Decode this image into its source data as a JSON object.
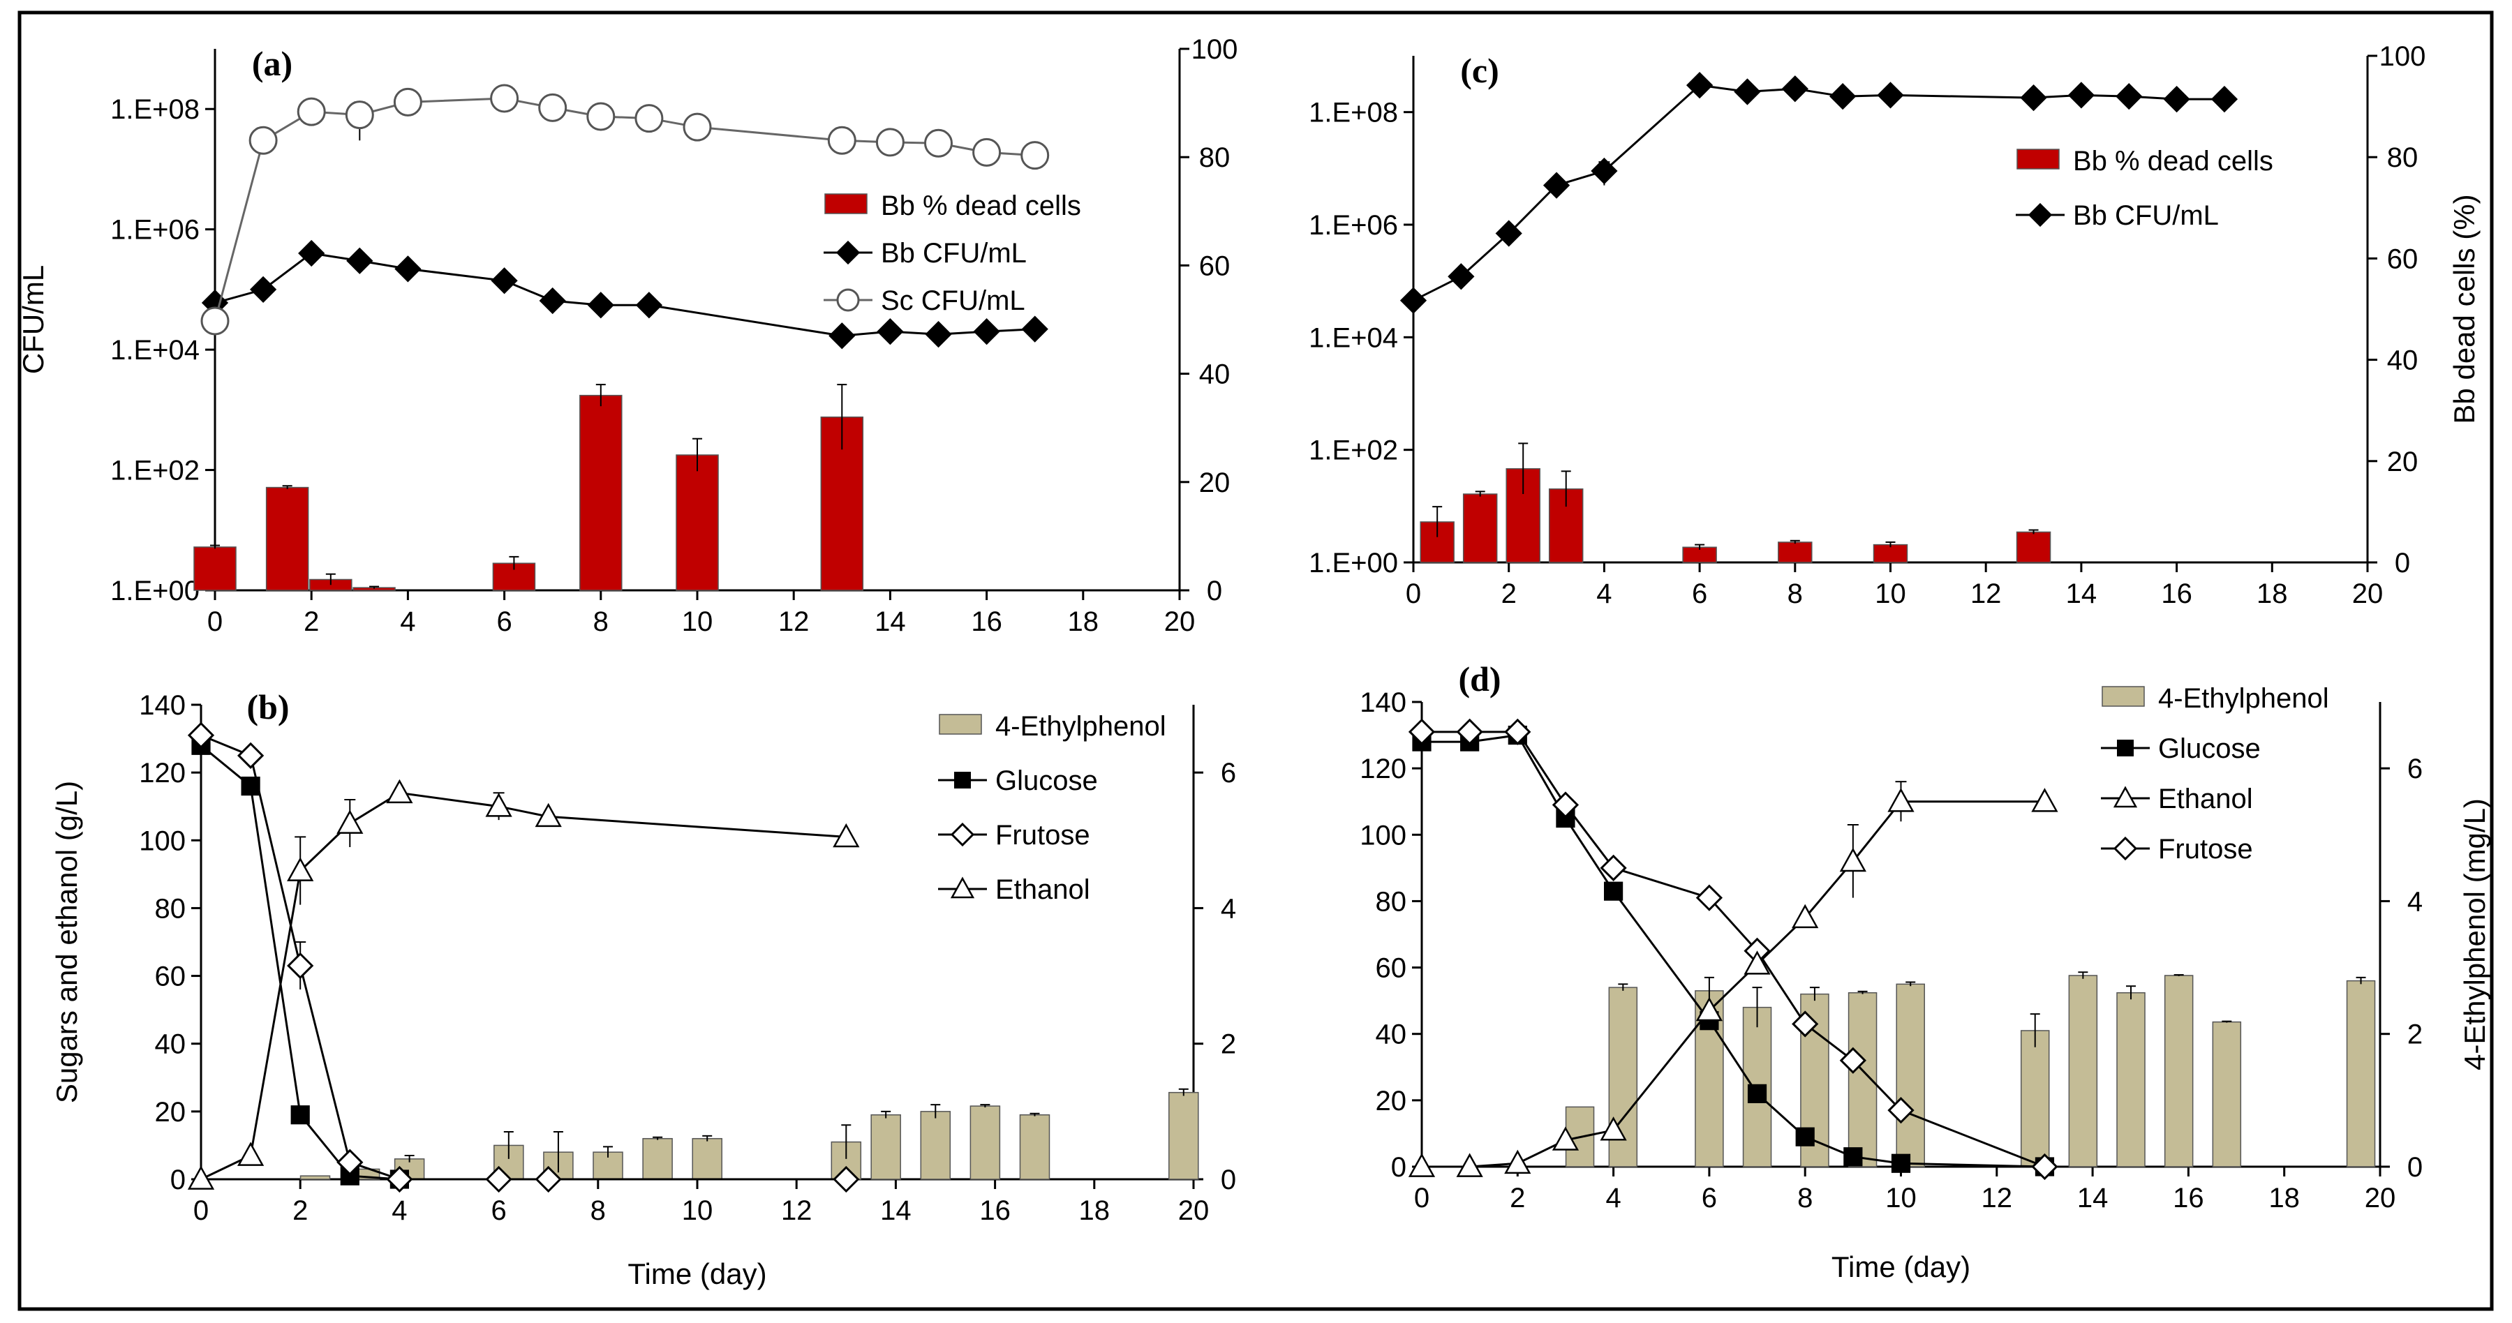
{
  "chart_data": [
    {
      "panel": "(a)",
      "type": "bar+line",
      "x_ticks": [
        "0",
        "2",
        "4",
        "6",
        "8",
        "10",
        "12",
        "14",
        "16",
        "18",
        "20"
      ],
      "xlim": [
        0,
        20
      ],
      "ylabel_left": "CFU/mL",
      "ylabel_right": "",
      "left_scale": "log",
      "ylim_left": [
        1,
        1000000000.0
      ],
      "y_ticks_left": [
        "1.E+00",
        "1.E+02",
        "1.E+04",
        "1.E+06",
        "1.E+08"
      ],
      "ylim_right": [
        0,
        100
      ],
      "y_ticks_right": [
        "0",
        "20",
        "40",
        "60",
        "80",
        "100"
      ],
      "bars": {
        "name": "Bb % dead cells",
        "color": "#c00000",
        "points": [
          {
            "x": 0,
            "y": 8,
            "err": 0.3
          },
          {
            "x": 1.5,
            "y": 19,
            "err": 0.3
          },
          {
            "x": 2.4,
            "y": 2,
            "err": 1
          },
          {
            "x": 3.3,
            "y": 0.5,
            "err": 0.2
          },
          {
            "x": 6.2,
            "y": 5,
            "err": 1.2
          },
          {
            "x": 8,
            "y": 36,
            "err": 2
          },
          {
            "x": 10,
            "y": 25,
            "err": 3
          },
          {
            "x": 13,
            "y": 32,
            "err": 6
          }
        ]
      },
      "lines": [
        {
          "name": "Bb CFU/mL",
          "marker": "diamond-filled",
          "points": [
            {
              "x": 0,
              "y": 60000.0
            },
            {
              "x": 1,
              "y": 100000.0
            },
            {
              "x": 2,
              "y": 400000.0
            },
            {
              "x": 3,
              "y": 300000.0
            },
            {
              "x": 4,
              "y": 220000.0
            },
            {
              "x": 6,
              "y": 140000.0
            },
            {
              "x": 7,
              "y": 65000.0,
              "err": 20000.0
            },
            {
              "x": 8,
              "y": 55000.0
            },
            {
              "x": 9,
              "y": 55000.0
            },
            {
              "x": 13,
              "y": 17000.0
            },
            {
              "x": 14,
              "y": 20000.0
            },
            {
              "x": 15,
              "y": 18000.0
            },
            {
              "x": 16,
              "y": 20000.0
            },
            {
              "x": 17,
              "y": 22000.0
            }
          ]
        },
        {
          "name": "Sc CFU/mL",
          "marker": "circle-open",
          "points": [
            {
              "x": 0,
              "y": 30000.0
            },
            {
              "x": 1,
              "y": 30000000.0
            },
            {
              "x": 2,
              "y": 90000000.0
            },
            {
              "x": 3,
              "y": 80000000.0,
              "err": 50000000.0
            },
            {
              "x": 4,
              "y": 130000000.0
            },
            {
              "x": 6,
              "y": 150000000.0
            },
            {
              "x": 7,
              "y": 105000000.0
            },
            {
              "x": 8,
              "y": 75000000.0
            },
            {
              "x": 9,
              "y": 70000000.0
            },
            {
              "x": 10,
              "y": 50000000.0
            },
            {
              "x": 13,
              "y": 30000000.0
            },
            {
              "x": 14,
              "y": 28000000.0
            },
            {
              "x": 15,
              "y": 27000000.0
            },
            {
              "x": 16,
              "y": 19000000.0
            },
            {
              "x": 17,
              "y": 17000000.0
            }
          ]
        }
      ],
      "legend": [
        "Bb % dead cells",
        "Bb CFU/mL",
        "Sc CFU/mL"
      ]
    },
    {
      "panel": "(b)",
      "type": "bar+line",
      "x_ticks": [
        "0",
        "2",
        "4",
        "6",
        "8",
        "10",
        "12",
        "14",
        "16",
        "18",
        "20"
      ],
      "xlim": [
        0,
        20
      ],
      "xlabel": "Time (day)",
      "ylabel_left": "Sugars and ethanol (g/L)",
      "ylim_left": [
        0,
        140
      ],
      "y_ticks_left": [
        "0",
        "20",
        "40",
        "60",
        "80",
        "100",
        "120",
        "140"
      ],
      "ylim_right": [
        0,
        7
      ],
      "y_ticks_right": [
        "0",
        "2",
        "4",
        "6"
      ],
      "bars": {
        "name": "4-Ethylphenol",
        "color": "#c4bc96",
        "points": [
          {
            "x": 2.3,
            "y": 0.05
          },
          {
            "x": 3.3,
            "y": 0.15
          },
          {
            "x": 4.2,
            "y": 0.3,
            "err": 0.05
          },
          {
            "x": 6.2,
            "y": 0.5,
            "err": 0.2
          },
          {
            "x": 7.2,
            "y": 0.4,
            "err": 0.3
          },
          {
            "x": 8.2,
            "y": 0.4,
            "err": 0.08
          },
          {
            "x": 9.2,
            "y": 0.6,
            "err": 0.02
          },
          {
            "x": 10.2,
            "y": 0.6,
            "err": 0.04
          },
          {
            "x": 13,
            "y": 0.55,
            "err": 0.25
          },
          {
            "x": 13.8,
            "y": 0.95,
            "err": 0.05
          },
          {
            "x": 14.8,
            "y": 1.0,
            "err": 0.1
          },
          {
            "x": 15.8,
            "y": 1.08,
            "err": 0.02
          },
          {
            "x": 16.8,
            "y": 0.95,
            "err": 0.02
          },
          {
            "x": 19.8,
            "y": 1.28,
            "err": 0.05
          }
        ]
      },
      "lines": [
        {
          "name": "Glucose",
          "marker": "square-filled",
          "points": [
            {
              "x": 0,
              "y": 128
            },
            {
              "x": 1,
              "y": 116
            },
            {
              "x": 2,
              "y": 19
            },
            {
              "x": 3,
              "y": 1
            },
            {
              "x": 4,
              "y": 0
            }
          ]
        },
        {
          "name": "Frutose",
          "marker": "diamond-open",
          "points": [
            {
              "x": 0,
              "y": 131
            },
            {
              "x": 1,
              "y": 125
            },
            {
              "x": 2,
              "y": 63,
              "err": 7
            },
            {
              "x": 3,
              "y": 5
            },
            {
              "x": 4,
              "y": 0
            },
            {
              "x": 6,
              "y": 0
            },
            {
              "x": 7,
              "y": 0
            },
            {
              "x": 13,
              "y": 0
            }
          ]
        },
        {
          "name": "Ethanol",
          "marker": "triangle-open",
          "points": [
            {
              "x": 0,
              "y": 0
            },
            {
              "x": 1,
              "y": 7
            },
            {
              "x": 2,
              "y": 91,
              "err": 10
            },
            {
              "x": 3,
              "y": 105,
              "err": 7
            },
            {
              "x": 4,
              "y": 114
            },
            {
              "x": 6,
              "y": 110,
              "err": 4
            },
            {
              "x": 7,
              "y": 107
            },
            {
              "x": 13,
              "y": 101
            }
          ]
        }
      ],
      "legend": [
        "4-Ethylphenol",
        "Glucose",
        "Frutose",
        "Ethanol"
      ]
    },
    {
      "panel": "(c)",
      "type": "bar+line",
      "x_ticks": [
        "0",
        "2",
        "4",
        "6",
        "8",
        "10",
        "12",
        "14",
        "16",
        "18",
        "20"
      ],
      "xlim": [
        0,
        20
      ],
      "left_scale": "log",
      "ylim_left": [
        1,
        1000000000.0
      ],
      "y_ticks_left": [
        "1.E+00",
        "1.E+02",
        "1.E+04",
        "1.E+06",
        "1.E+08"
      ],
      "ylabel_right": "Bb dead cells (%)",
      "ylim_right": [
        0,
        100
      ],
      "y_ticks_right": [
        "0",
        "20",
        "40",
        "60",
        "80",
        "100"
      ],
      "bars": {
        "name": "Bb % dead cells",
        "color": "#c00000",
        "points": [
          {
            "x": 0.5,
            "y": 8,
            "err": 3
          },
          {
            "x": 1.4,
            "y": 13.5,
            "err": 0.5
          },
          {
            "x": 2.3,
            "y": 18.5,
            "err": 5
          },
          {
            "x": 3.2,
            "y": 14.5,
            "err": 3.5
          },
          {
            "x": 6,
            "y": 3,
            "err": 0.5
          },
          {
            "x": 8,
            "y": 4,
            "err": 0.3
          },
          {
            "x": 10,
            "y": 3.5,
            "err": 0.5
          },
          {
            "x": 13,
            "y": 6,
            "err": 0.4
          }
        ]
      },
      "lines": [
        {
          "name": "Bb CFU/mL",
          "marker": "diamond-filled",
          "points": [
            {
              "x": 0,
              "y": 45000.0
            },
            {
              "x": 1,
              "y": 120000.0
            },
            {
              "x": 2,
              "y": 700000.0,
              "err": 200000.0
            },
            {
              "x": 3,
              "y": 5000000.0
            },
            {
              "x": 4,
              "y": 9000000.0,
              "err": 4000000.0
            },
            {
              "x": 6,
              "y": 300000000.0
            },
            {
              "x": 7,
              "y": 230000000.0
            },
            {
              "x": 8,
              "y": 260000000.0
            },
            {
              "x": 9,
              "y": 190000000.0
            },
            {
              "x": 10,
              "y": 200000000.0
            },
            {
              "x": 13,
              "y": 180000000.0
            },
            {
              "x": 14,
              "y": 200000000.0
            },
            {
              "x": 15,
              "y": 190000000.0
            },
            {
              "x": 16,
              "y": 170000000.0
            },
            {
              "x": 17,
              "y": 170000000.0
            }
          ]
        }
      ],
      "legend": [
        "Bb % dead cells",
        "Bb CFU/mL"
      ]
    },
    {
      "panel": "(d)",
      "type": "bar+line",
      "x_ticks": [
        "0",
        "2",
        "4",
        "6",
        "8",
        "10",
        "12",
        "14",
        "16",
        "18",
        "20"
      ],
      "xlim": [
        0,
        20
      ],
      "xlabel": "Time (day)",
      "ylim_left": [
        0,
        140
      ],
      "y_ticks_left": [
        "0",
        "20",
        "40",
        "60",
        "80",
        "100",
        "120",
        "140"
      ],
      "ylabel_right": "4-Ethylphenol (mg/L)",
      "ylim_right": [
        0,
        7
      ],
      "y_ticks_right": [
        "0",
        "2",
        "4",
        "6"
      ],
      "bars": {
        "name": "4-Ethylphenol",
        "color": "#c4bc96",
        "points": [
          {
            "x": 3.3,
            "y": 0.9
          },
          {
            "x": 4.2,
            "y": 2.7,
            "err": 0.05
          },
          {
            "x": 6,
            "y": 2.65,
            "err": 0.2
          },
          {
            "x": 7,
            "y": 2.4,
            "err": 0.3
          },
          {
            "x": 8.2,
            "y": 2.6,
            "err": 0.1
          },
          {
            "x": 9.2,
            "y": 2.62,
            "err": 0.02
          },
          {
            "x": 10.2,
            "y": 2.75,
            "err": 0.03
          },
          {
            "x": 12.8,
            "y": 2.05,
            "err": 0.25
          },
          {
            "x": 13.8,
            "y": 2.88,
            "err": 0.05
          },
          {
            "x": 14.8,
            "y": 2.62,
            "err": 0.1
          },
          {
            "x": 15.8,
            "y": 2.88,
            "err": 0.01
          },
          {
            "x": 16.8,
            "y": 2.18,
            "err": 0.01
          },
          {
            "x": 19.6,
            "y": 2.8,
            "err": 0.05
          }
        ]
      },
      "lines": [
        {
          "name": "Glucose",
          "marker": "square-filled",
          "points": [
            {
              "x": 0,
              "y": 128
            },
            {
              "x": 1,
              "y": 128
            },
            {
              "x": 2,
              "y": 130
            },
            {
              "x": 3,
              "y": 105
            },
            {
              "x": 4,
              "y": 83
            },
            {
              "x": 6,
              "y": 44
            },
            {
              "x": 7,
              "y": 22
            },
            {
              "x": 8,
              "y": 9
            },
            {
              "x": 9,
              "y": 3
            },
            {
              "x": 10,
              "y": 1
            },
            {
              "x": 13,
              "y": 0
            }
          ]
        },
        {
          "name": "Frutose",
          "marker": "diamond-open",
          "points": [
            {
              "x": 0,
              "y": 131
            },
            {
              "x": 1,
              "y": 131
            },
            {
              "x": 2,
              "y": 131
            },
            {
              "x": 3,
              "y": 109
            },
            {
              "x": 4,
              "y": 90
            },
            {
              "x": 6,
              "y": 81
            },
            {
              "x": 7,
              "y": 65
            },
            {
              "x": 8,
              "y": 43
            },
            {
              "x": 9,
              "y": 32
            },
            {
              "x": 10,
              "y": 17
            },
            {
              "x": 13,
              "y": 0
            }
          ]
        },
        {
          "name": "Ethanol",
          "marker": "triangle-open",
          "points": [
            {
              "x": 0,
              "y": 0
            },
            {
              "x": 1,
              "y": 0
            },
            {
              "x": 2,
              "y": 1
            },
            {
              "x": 3,
              "y": 8
            },
            {
              "x": 4,
              "y": 11
            },
            {
              "x": 6,
              "y": 47
            },
            {
              "x": 7,
              "y": 61
            },
            {
              "x": 8,
              "y": 75
            },
            {
              "x": 9,
              "y": 92,
              "err": 11
            },
            {
              "x": 10,
              "y": 110,
              "err": 6
            },
            {
              "x": 13,
              "y": 110
            }
          ]
        }
      ],
      "legend": [
        "4-Ethylphenol",
        "Glucose",
        "Ethanol",
        "Frutose"
      ]
    }
  ]
}
